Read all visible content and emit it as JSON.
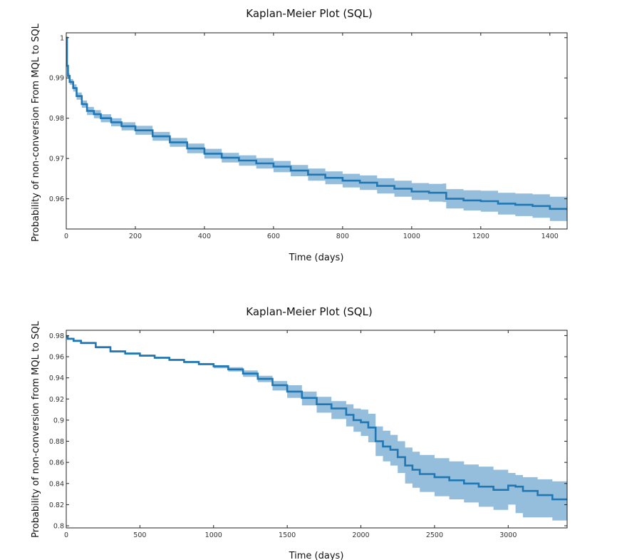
{
  "chart_data": [
    {
      "type": "line",
      "title": "Kaplan-Meier Plot (SQL)",
      "xlabel": "Time (days)",
      "ylabel": "Probability of non-conversion From MQL to SQL",
      "xlim": [
        0,
        1450
      ],
      "ylim": [
        0.9525,
        1.0012
      ],
      "xticks": [
        0,
        200,
        400,
        600,
        800,
        1000,
        1200,
        1400
      ],
      "xtick_labels": [
        "0",
        "200",
        "400",
        "600",
        "800",
        "1000",
        "1200",
        "1400"
      ],
      "yticks": [
        0.96,
        0.97,
        0.98,
        0.99,
        1
      ],
      "ytick_labels": [
        "0.96",
        "0.97",
        "0.98",
        "0.99",
        "1"
      ],
      "grid": false,
      "colors": {
        "line": "#1f77b4",
        "band": "#1f77b4"
      },
      "series": [
        {
          "step": true,
          "x": [
            0,
            2,
            5,
            10,
            20,
            30,
            45,
            60,
            80,
            100,
            130,
            160,
            200,
            250,
            300,
            350,
            400,
            450,
            500,
            550,
            600,
            650,
            700,
            750,
            800,
            850,
            900,
            950,
            1000,
            1050,
            1090,
            1100,
            1150,
            1200,
            1250,
            1300,
            1350,
            1400,
            1450
          ],
          "y": [
            1.0,
            0.993,
            0.9905,
            0.989,
            0.9875,
            0.9855,
            0.9835,
            0.9818,
            0.981,
            0.98,
            0.979,
            0.978,
            0.977,
            0.9755,
            0.974,
            0.9725,
            0.9712,
            0.9702,
            0.9695,
            0.9688,
            0.968,
            0.967,
            0.966,
            0.9652,
            0.9645,
            0.964,
            0.9632,
            0.9625,
            0.9618,
            0.9615,
            0.9615,
            0.96,
            0.9596,
            0.9594,
            0.9588,
            0.9585,
            0.9582,
            0.9575,
            0.9572
          ],
          "lower": [
            1.0,
            0.9925,
            0.9898,
            0.9883,
            0.9866,
            0.9846,
            0.9826,
            0.9808,
            0.98,
            0.979,
            0.978,
            0.977,
            0.9759,
            0.9744,
            0.9729,
            0.9713,
            0.97,
            0.969,
            0.9682,
            0.9675,
            0.9666,
            0.9656,
            0.9645,
            0.9636,
            0.9628,
            0.9622,
            0.9613,
            0.9605,
            0.9597,
            0.9593,
            0.9592,
            0.9576,
            0.9571,
            0.9568,
            0.9561,
            0.9557,
            0.9553,
            0.9545,
            0.9541
          ],
          "upper": [
            1.0,
            0.9935,
            0.9912,
            0.9897,
            0.9884,
            0.9864,
            0.9844,
            0.9828,
            0.982,
            0.981,
            0.98,
            0.979,
            0.9781,
            0.9766,
            0.9751,
            0.9737,
            0.9724,
            0.9714,
            0.9708,
            0.9701,
            0.9694,
            0.9684,
            0.9675,
            0.9668,
            0.9662,
            0.9658,
            0.9651,
            0.9645,
            0.9639,
            0.9637,
            0.9638,
            0.9624,
            0.9621,
            0.962,
            0.9615,
            0.9613,
            0.9611,
            0.9605,
            0.9603
          ]
        }
      ]
    },
    {
      "type": "line",
      "title": "Kaplan-Meier Plot (SQL)",
      "xlabel": "Time (days)",
      "ylabel": "Probability of non-conversion from MQL to SQL",
      "xlim": [
        0,
        3400
      ],
      "ylim": [
        0.798,
        0.985
      ],
      "xticks": [
        0,
        500,
        1000,
        1500,
        2000,
        2500,
        3000
      ],
      "xtick_labels": [
        "0",
        "500",
        "1000",
        "1500",
        "2000",
        "2500",
        "3000"
      ],
      "yticks": [
        0.8,
        0.82,
        0.84,
        0.86,
        0.88,
        0.9,
        0.92,
        0.94,
        0.96,
        0.98
      ],
      "ytick_labels": [
        "0.8",
        "0.82",
        "0.84",
        "0.86",
        "0.88",
        "0.9",
        "0.92",
        "0.94",
        "0.96",
        "0.98"
      ],
      "grid": false,
      "colors": {
        "line": "#1f77b4",
        "band": "#1f77b4"
      },
      "series": [
        {
          "step": true,
          "x": [
            0,
            10,
            50,
            100,
            200,
            300,
            400,
            500,
            600,
            700,
            800,
            900,
            1000,
            1100,
            1200,
            1300,
            1400,
            1500,
            1600,
            1700,
            1800,
            1900,
            1950,
            2000,
            2050,
            2100,
            2150,
            2200,
            2250,
            2300,
            2350,
            2400,
            2500,
            2600,
            2700,
            2800,
            2900,
            3000,
            3050,
            3100,
            3200,
            3300,
            3400
          ],
          "y": [
            0.979,
            0.977,
            0.975,
            0.973,
            0.969,
            0.965,
            0.963,
            0.961,
            0.959,
            0.957,
            0.955,
            0.953,
            0.951,
            0.948,
            0.944,
            0.939,
            0.933,
            0.927,
            0.921,
            0.915,
            0.911,
            0.905,
            0.9,
            0.898,
            0.893,
            0.88,
            0.875,
            0.872,
            0.865,
            0.857,
            0.853,
            0.849,
            0.846,
            0.843,
            0.84,
            0.837,
            0.834,
            0.838,
            0.837,
            0.833,
            0.829,
            0.825,
            0.825
          ],
          "lower": [
            0.978,
            0.976,
            0.974,
            0.972,
            0.968,
            0.964,
            0.962,
            0.96,
            0.958,
            0.956,
            0.954,
            0.952,
            0.949,
            0.946,
            0.941,
            0.936,
            0.928,
            0.921,
            0.914,
            0.907,
            0.901,
            0.894,
            0.889,
            0.885,
            0.879,
            0.866,
            0.861,
            0.857,
            0.85,
            0.84,
            0.836,
            0.832,
            0.828,
            0.825,
            0.822,
            0.818,
            0.815,
            0.82,
            0.812,
            0.808,
            0.808,
            0.805,
            0.805
          ],
          "upper": [
            0.98,
            0.978,
            0.976,
            0.974,
            0.97,
            0.966,
            0.964,
            0.962,
            0.96,
            0.958,
            0.956,
            0.954,
            0.952,
            0.95,
            0.947,
            0.942,
            0.937,
            0.933,
            0.927,
            0.922,
            0.918,
            0.915,
            0.911,
            0.91,
            0.906,
            0.894,
            0.89,
            0.886,
            0.88,
            0.874,
            0.87,
            0.867,
            0.864,
            0.861,
            0.858,
            0.856,
            0.853,
            0.85,
            0.848,
            0.846,
            0.844,
            0.842,
            0.84
          ]
        }
      ]
    }
  ]
}
